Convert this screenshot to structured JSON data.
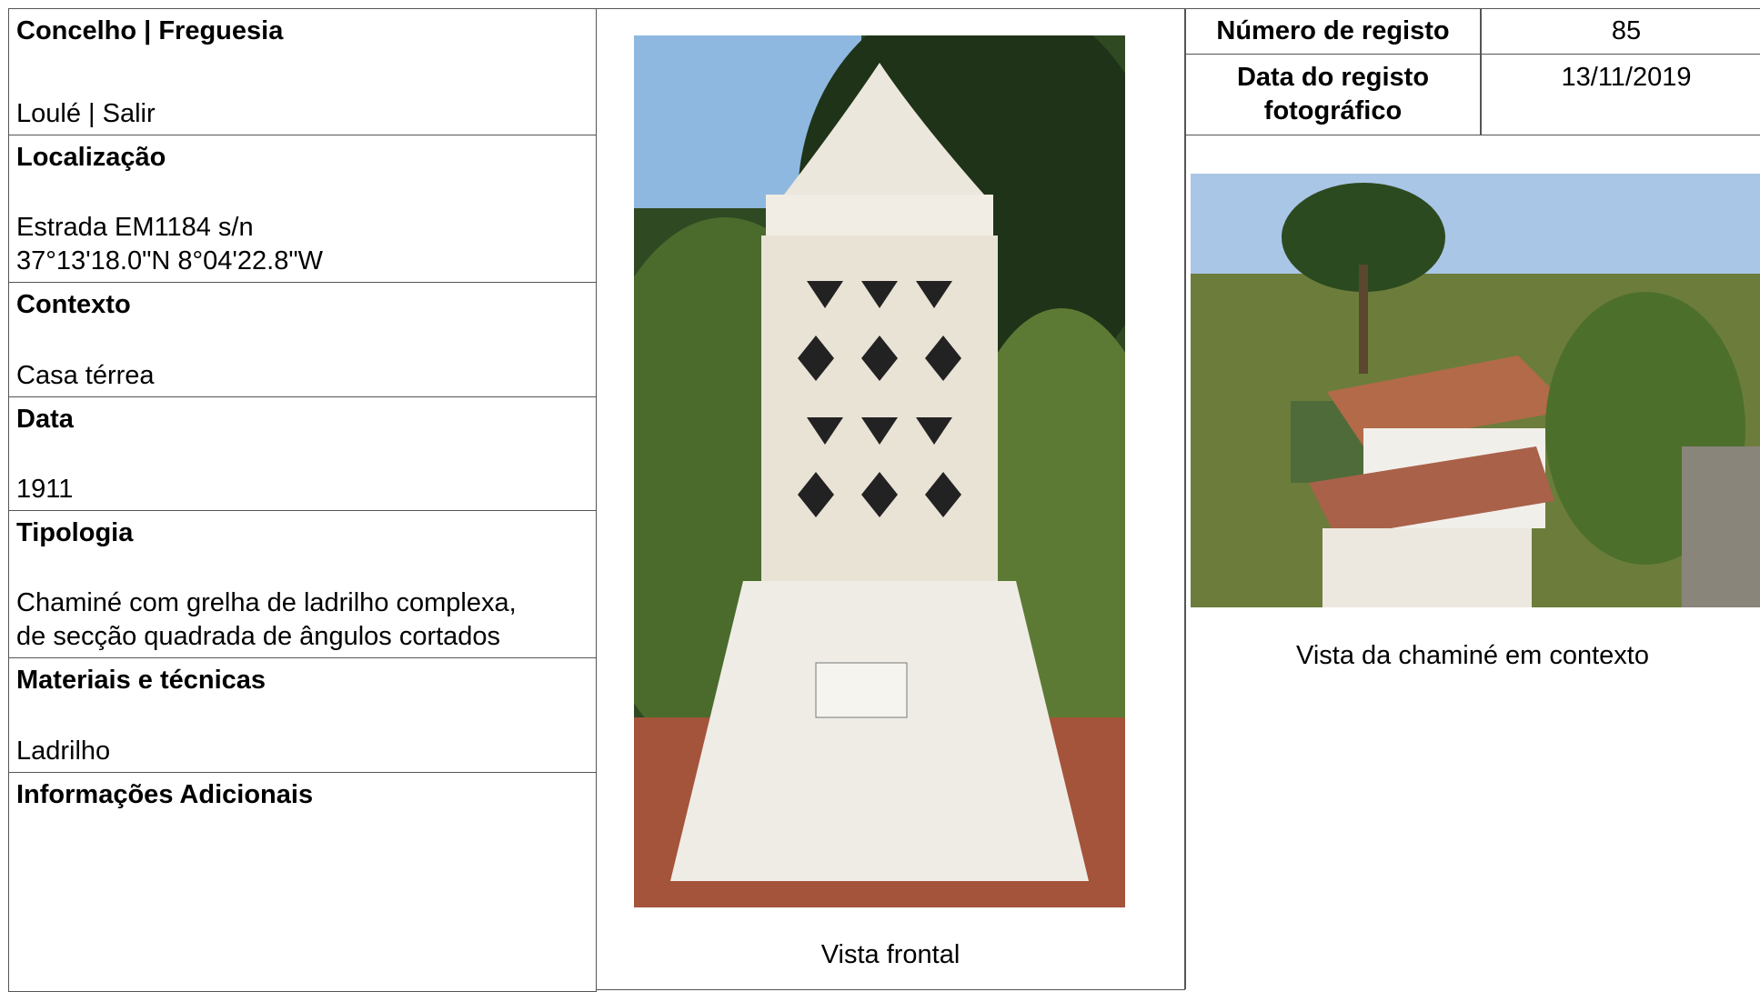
{
  "fields": [
    {
      "label": "Concelho | Freguesia",
      "value": [
        "Loulé | Salir"
      ]
    },
    {
      "label": "Localização",
      "value": [
        "Estrada EM1184 s/n",
        "37°13'18.0\"N 8°04'22.8\"W"
      ]
    },
    {
      "label": "Contexto",
      "value": [
        "Casa térrea"
      ]
    },
    {
      "label": "Data",
      "value": [
        "1911"
      ]
    },
    {
      "label": "Tipologia",
      "value": [
        "Chaminé com grelha de ladrilho complexa,",
        "de secção quadrada de ângulos cortados"
      ]
    },
    {
      "label": "Materiais e técnicas",
      "value": [
        "Ladrilho"
      ]
    },
    {
      "label": "Informações Adicionais",
      "value": []
    }
  ],
  "register": {
    "number_label": "Número de registo",
    "number": 85,
    "date_label": "Data do registo fotográfico",
    "date": "13/11/2019"
  },
  "photos": {
    "front_caption": "Vista frontal",
    "context_caption": "Vista da chaminé em contexto"
  }
}
